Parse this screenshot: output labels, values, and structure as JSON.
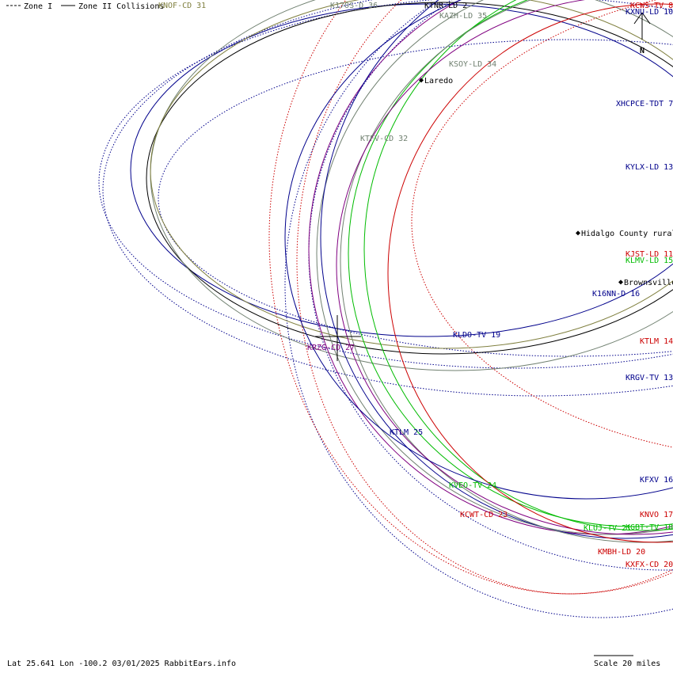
{
  "legend": {
    "zone1": "Zone I",
    "zone2": "Zone II Collisions"
  },
  "compass": {
    "label": "N"
  },
  "footer": {
    "coords": "Lat 25.641 Lon -100.2 03/01/2025 RabbitEars.info",
    "scale": "Scale 20 miles"
  },
  "colors": {
    "navy": "#00008b",
    "red": "#cc0000",
    "green": "#00bb00",
    "gray": "#708070",
    "purple": "#800080",
    "olive": "#808040",
    "black": "#000000"
  },
  "stations": [
    {
      "label": "KXNU-LD 10",
      "color": "navy"
    },
    {
      "label": "KCWS-TV 8",
      "color": "red"
    },
    {
      "label": "KTNR-LD 2",
      "color": "black"
    },
    {
      "label": "K17OS-D 36",
      "color": "gray"
    },
    {
      "label": "KAZH-LD 35",
      "color": "gray"
    },
    {
      "label": "KNOF-CD 31",
      "color": "olive"
    },
    {
      "label": "KSOY-LD 34",
      "color": "gray"
    },
    {
      "label": "KTFV-CD 32",
      "color": "gray"
    },
    {
      "label": "XHCPCE-TDT 7",
      "color": "navy"
    },
    {
      "label": "KYLX-LD 13",
      "color": "navy"
    },
    {
      "label": "KJST-LD 11",
      "color": "red"
    },
    {
      "label": "KLMV-LD 15",
      "color": "green"
    },
    {
      "label": "K16NN-D 16",
      "color": "navy"
    },
    {
      "label": "KLDO-TV 19",
      "color": "navy"
    },
    {
      "label": "KRZG-CD 27",
      "color": "purple"
    },
    {
      "label": "KTLM 14",
      "color": "red"
    },
    {
      "label": "KRGV-TV 13",
      "color": "navy"
    },
    {
      "label": "KTLM 25",
      "color": "navy"
    },
    {
      "label": "KVEO-TV 24",
      "color": "green"
    },
    {
      "label": "KFXV 16",
      "color": "navy"
    },
    {
      "label": "KCWT-CD 23",
      "color": "red"
    },
    {
      "label": "KNVO 17",
      "color": "red"
    },
    {
      "label": "KLUJ-TV 21",
      "color": "green"
    },
    {
      "label": "KGBT-TV 18",
      "color": "green"
    },
    {
      "label": "KMBH-LD 20",
      "color": "red"
    },
    {
      "label": "KXFX-CD 20",
      "color": "red"
    }
  ],
  "cities": [
    {
      "name": "Laredo"
    },
    {
      "name": "Hidalgo County rural"
    },
    {
      "name": "Brownsville"
    }
  ]
}
